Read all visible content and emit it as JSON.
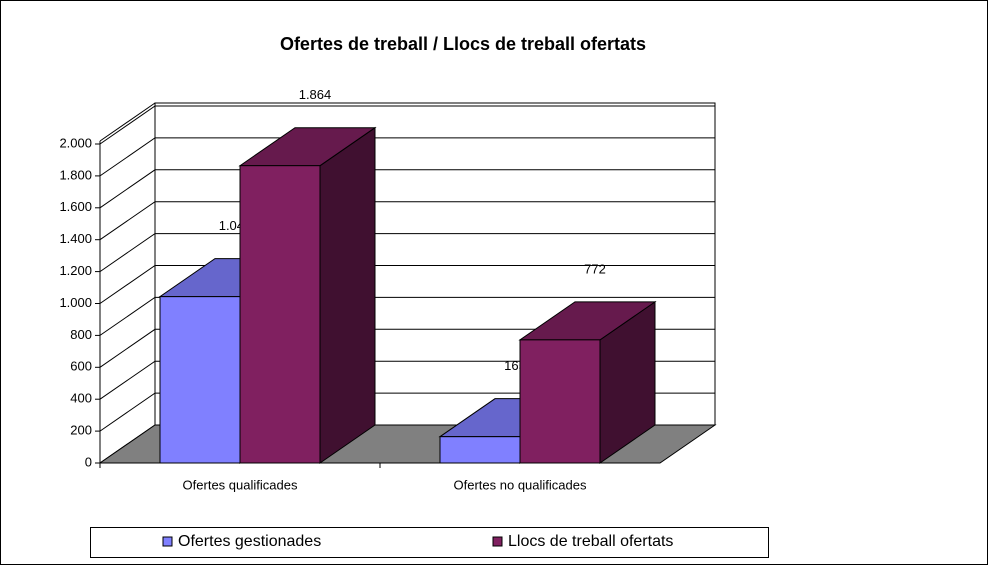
{
  "chart_data": {
    "type": "bar3d",
    "title": "Ofertes de treball / Llocs de treball ofertats",
    "categories": [
      "Ofertes qualificades",
      "Ofertes no qualificades"
    ],
    "series": [
      {
        "name": "Ofertes gestionades",
        "color": "#8080ff",
        "values": [
          1043,
          165
        ],
        "value_labels": [
          "1.043",
          "165"
        ]
      },
      {
        "name": "Llocs de treball ofertats",
        "color": "#802060",
        "values": [
          1864,
          772
        ],
        "value_labels": [
          "1.864",
          "772"
        ]
      }
    ],
    "ylim": [
      0,
      2000
    ],
    "yticks": [
      0,
      200,
      400,
      600,
      800,
      {
        "value": 1000,
        "label": "1.000"
      },
      {
        "value": 1200,
        "label": "1.200"
      },
      {
        "value": 1400,
        "label": "1.400"
      },
      {
        "value": 1600,
        "label": "1.600"
      },
      {
        "value": 1800,
        "label": "1.800"
      },
      {
        "value": 2000,
        "label": "2.000"
      }
    ],
    "grid": true,
    "legend": "bottom"
  }
}
